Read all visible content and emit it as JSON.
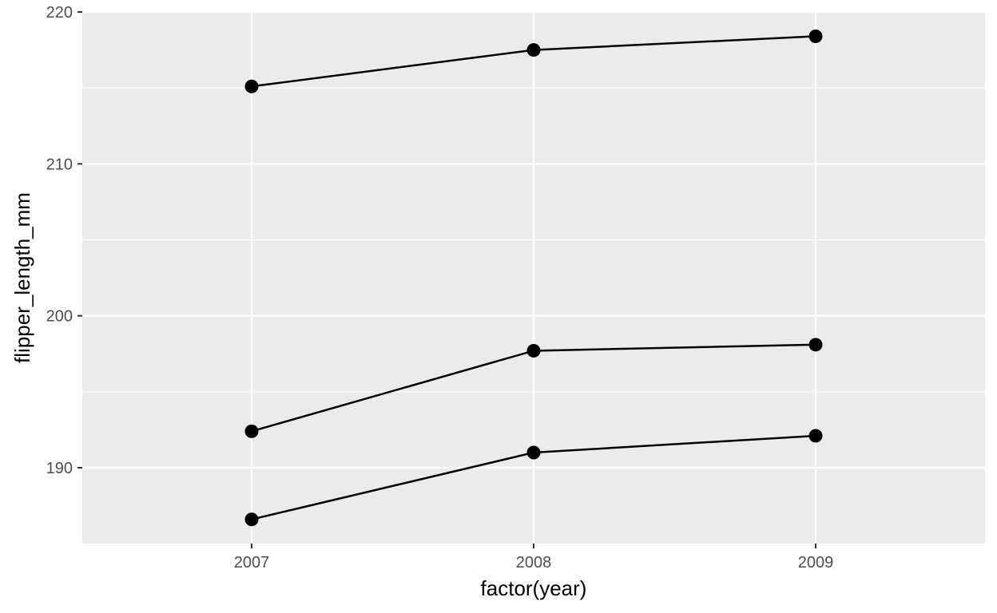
{
  "chart_data": {
    "type": "line",
    "xlabel": "factor(year)",
    "ylabel": "flipper_length_mm",
    "categories": [
      "2007",
      "2008",
      "2009"
    ],
    "ylim": [
      185,
      220
    ],
    "y_ticks": [
      190,
      200,
      210,
      220
    ],
    "grid": true,
    "series": [
      {
        "values": [
          215.1,
          217.5,
          218.4
        ]
      },
      {
        "values": [
          192.4,
          197.7,
          198.1
        ]
      },
      {
        "values": [
          186.6,
          191.0,
          192.1
        ]
      }
    ],
    "colors": {
      "panel": "#ebebeb",
      "grid": "#ffffff",
      "line": "#000000",
      "point": "#000000"
    }
  }
}
